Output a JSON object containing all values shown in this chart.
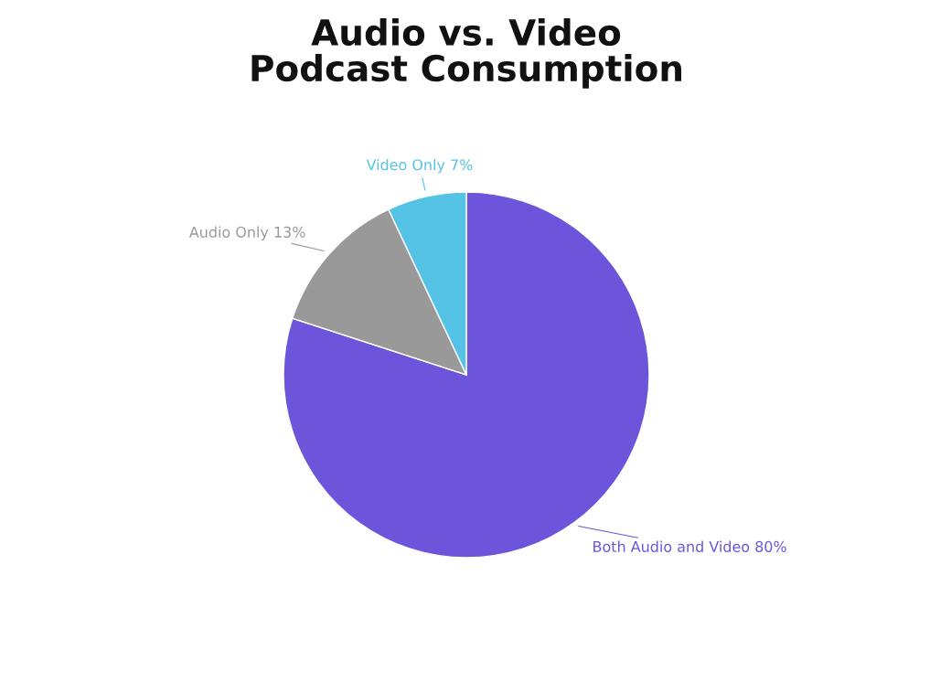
{
  "chart_data": {
    "type": "pie",
    "title": "Audio vs. Video\nPodcast Consumption",
    "categories": [
      "Both Audio and Video",
      "Audio Only",
      "Video Only"
    ],
    "values": [
      80,
      13,
      7
    ],
    "value_labels": [
      "80%",
      "13%",
      "7%"
    ],
    "colors": [
      "#6c54db",
      "#999999",
      "#54c3e6"
    ],
    "legend": false
  }
}
